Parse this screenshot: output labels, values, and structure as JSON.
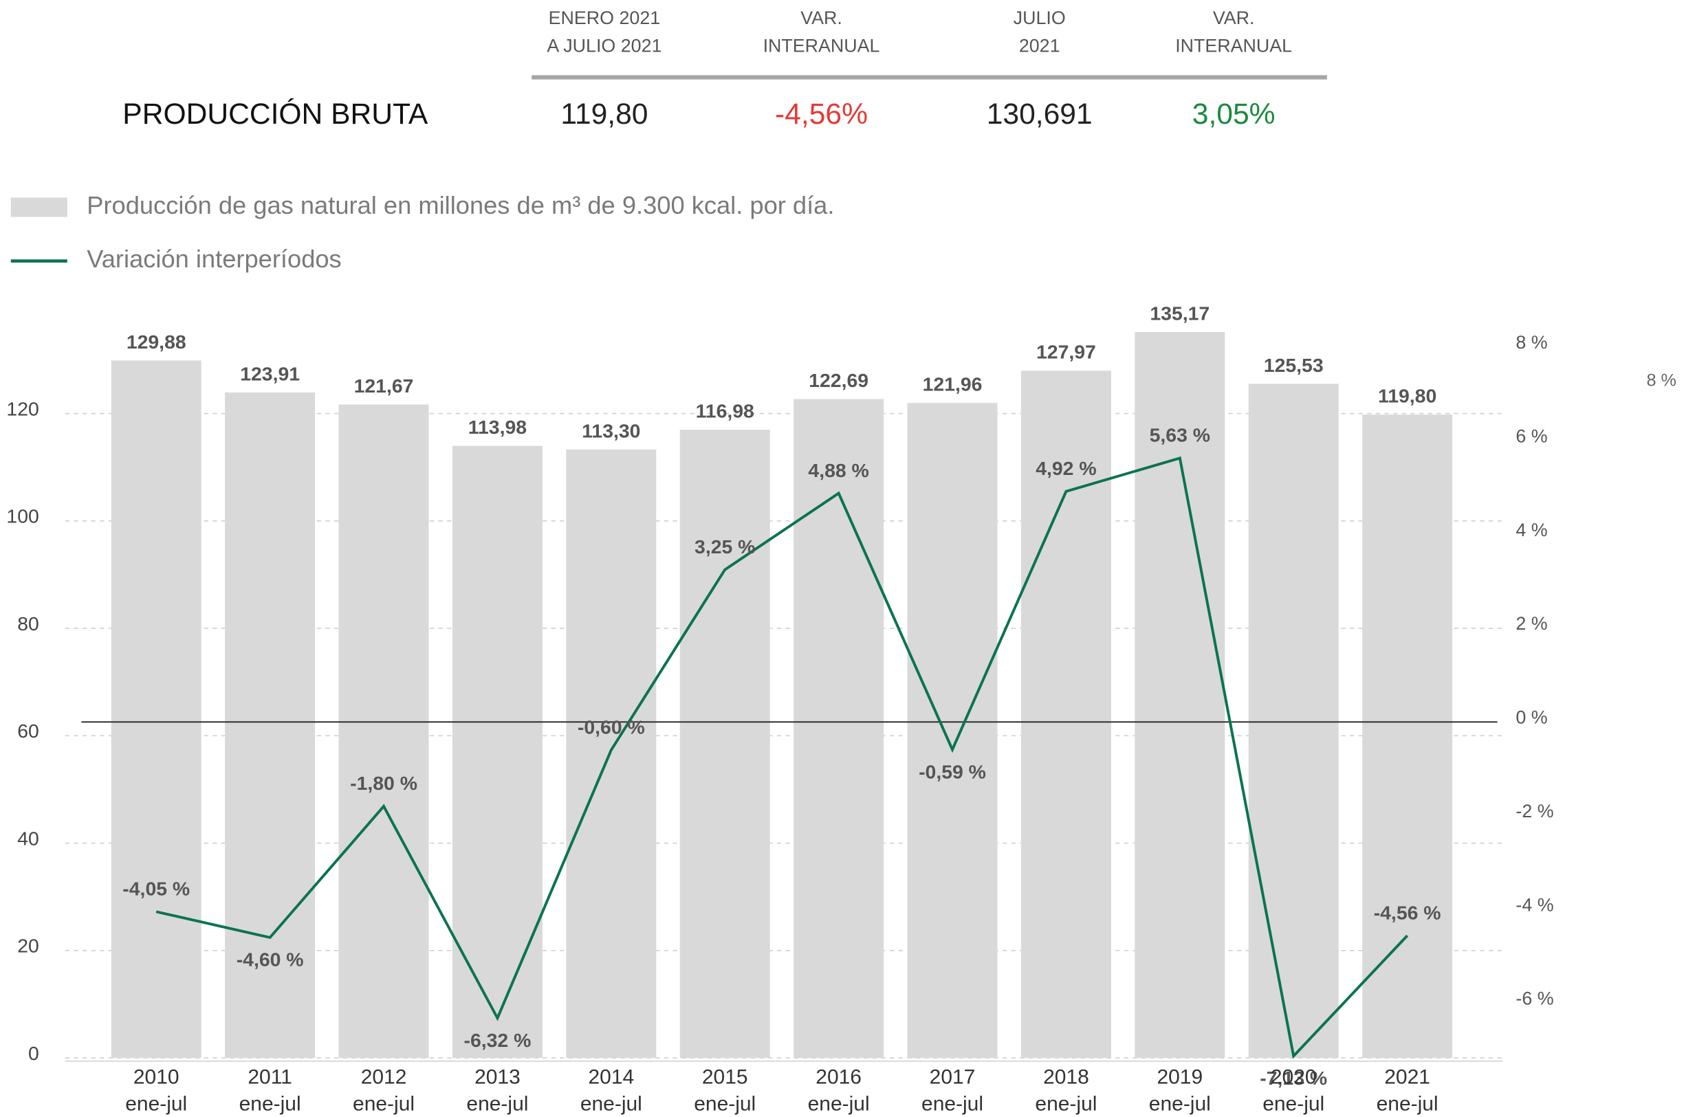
{
  "header": {
    "columns": [
      [
        "ENERO 2021",
        "A JULIO 2021"
      ],
      [
        "VAR.",
        "INTERANUAL"
      ],
      [
        "JULIO",
        "2021"
      ],
      [
        "VAR.",
        "INTERANUAL"
      ]
    ],
    "row": {
      "label": "PRODUCCIÓN BRUTA",
      "values": [
        "119,80",
        "-4,56%",
        "130,691",
        "3,05%"
      ],
      "colors": [
        "#222222",
        "#e53935",
        "#222222",
        "#1b8a3e"
      ]
    }
  },
  "chart_data": {
    "type": "bar",
    "categories": [
      "2010",
      "2011",
      "2012",
      "2013",
      "2014",
      "2015",
      "2016",
      "2017",
      "2018",
      "2019",
      "2020",
      "2021"
    ],
    "category_period": "ene-jul",
    "series": [
      {
        "name": "Producción de gas natural en millones de m³ de 9.300 kcal. por día.",
        "color": "#d9d9d9",
        "type": "bar",
        "values": [
          129.88,
          123.91,
          121.67,
          113.98,
          113.3,
          116.98,
          122.69,
          121.96,
          127.97,
          135.17,
          125.53,
          119.8
        ],
        "value_labels": [
          "129,88",
          "123,91",
          "121,67",
          "113,98",
          "113,30",
          "116,98",
          "122,69",
          "121,96",
          "127,97",
          "135,17",
          "125,53",
          "119,80"
        ]
      },
      {
        "name": "Variación interperíodos",
        "color": "#0b7352",
        "type": "line",
        "axis": "y2",
        "values": [
          -4.05,
          -4.6,
          -1.8,
          -6.32,
          -0.6,
          3.25,
          4.88,
          -0.59,
          4.92,
          5.63,
          -7.13,
          -4.56
        ],
        "value_labels": [
          "-4,05 %",
          "-4,60 %",
          "-1,80 %",
          "-6,32 %",
          "-0,60 %",
          "3,25 %",
          "4,88 %",
          "-0,59 %",
          "4,92 %",
          "5,63 %",
          "-7,13 %",
          "-4,56 %"
        ]
      }
    ],
    "ylim": [
      0,
      137
    ],
    "yticks": [
      0,
      20,
      40,
      60,
      80,
      100,
      120
    ],
    "y2lim": [
      -7.17,
      8.53
    ],
    "y2ticks": [
      {
        "value": -6,
        "label": "-6 %"
      },
      {
        "value": -4,
        "label": "-4 %"
      },
      {
        "value": -2,
        "label": "-2 %"
      },
      {
        "value": 0,
        "label": "0 %"
      },
      {
        "value": 2,
        "label": "2 %"
      },
      {
        "value": 4,
        "label": "4 %"
      },
      {
        "value": 6,
        "label": "6 %"
      },
      {
        "value": 8,
        "label": "8 %"
      }
    ],
    "annotations": [
      "8 %"
    ],
    "grid": true
  }
}
